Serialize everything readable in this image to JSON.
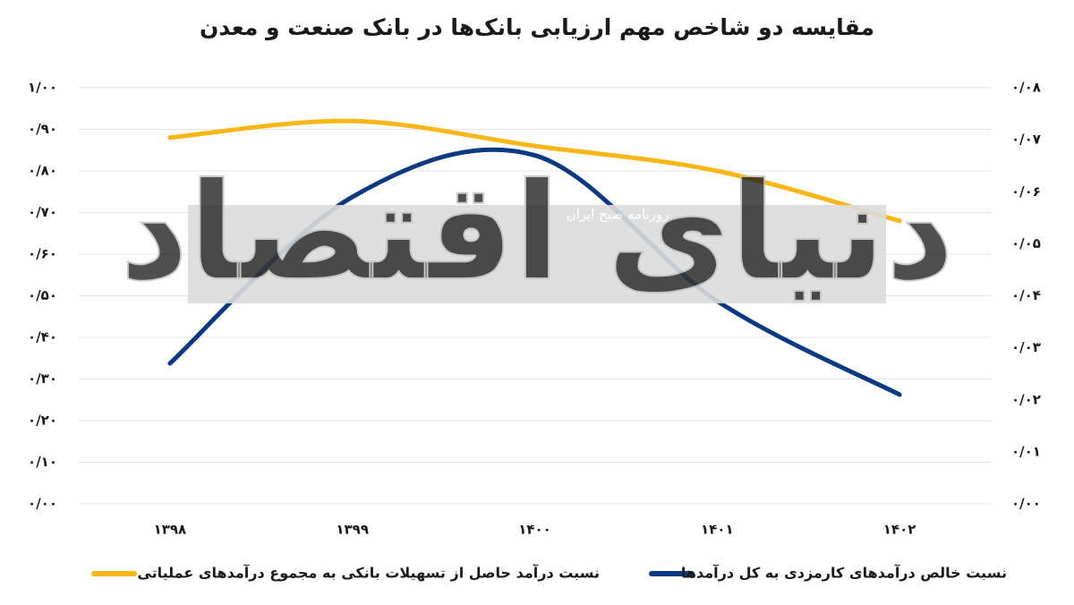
{
  "chart_data": {
    "type": "line",
    "title": "مقایسه دو شاخص مهم ارزیابی بانک‌ها در بانک صنعت و معدن",
    "watermark": "دنیای اقتصاد",
    "watermark_subtitle": "روزنامه صبح ایران",
    "categories": [
      "۱۳۹۸",
      "۱۳۹۹",
      "۱۴۰۰",
      "۱۴۰۱",
      "۱۴۰۲"
    ],
    "series": [
      {
        "name": "نسبت درآمد حاصل از تسهیلات بانکی به مجموع درآمدهای عملیاتی",
        "color": "#f7b718",
        "axis": "y",
        "values": [
          0.88,
          0.92,
          0.86,
          0.8,
          0.68
        ]
      },
      {
        "name": "نسبت خالص درآمدهای کارمزدی به کل درآمدها",
        "color": "#0b3a82",
        "axis": "y2",
        "values": [
          0.027,
          0.059,
          0.067,
          0.039,
          0.021
        ]
      }
    ],
    "ylim": [
      0,
      1
    ],
    "yticks": [
      {
        "value": 0,
        "label": "۰/۰۰"
      },
      {
        "value": 0.1,
        "label": "۰/۱۰"
      },
      {
        "value": 0.2,
        "label": "۰/۲۰"
      },
      {
        "value": 0.3,
        "label": "۰/۳۰"
      },
      {
        "value": 0.4,
        "label": "۰/۴۰"
      },
      {
        "value": 0.5,
        "label": "۰/۵۰"
      },
      {
        "value": 0.6,
        "label": "۰/۶۰"
      },
      {
        "value": 0.7,
        "label": "۰/۷۰"
      },
      {
        "value": 0.8,
        "label": "۰/۸۰"
      },
      {
        "value": 0.9,
        "label": "۰/۹۰"
      },
      {
        "value": 1,
        "label": "۱/۰۰"
      }
    ],
    "y2lim": [
      0,
      0.08
    ],
    "y2ticks": [
      {
        "value": 0,
        "label": "۰/۰۰"
      },
      {
        "value": 0.01,
        "label": "۰/۰۱"
      },
      {
        "value": 0.02,
        "label": "۰/۰۲"
      },
      {
        "value": 0.03,
        "label": "۰/۰۳"
      },
      {
        "value": 0.04,
        "label": "۰/۰۴"
      },
      {
        "value": 0.05,
        "label": "۰/۰۵"
      },
      {
        "value": 0.06,
        "label": "۰/۰۶"
      },
      {
        "value": 0.07,
        "label": "۰/۰۷"
      },
      {
        "value": 0.08,
        "label": "۰/۰۸"
      }
    ],
    "grid": true,
    "legend": "bottom"
  }
}
